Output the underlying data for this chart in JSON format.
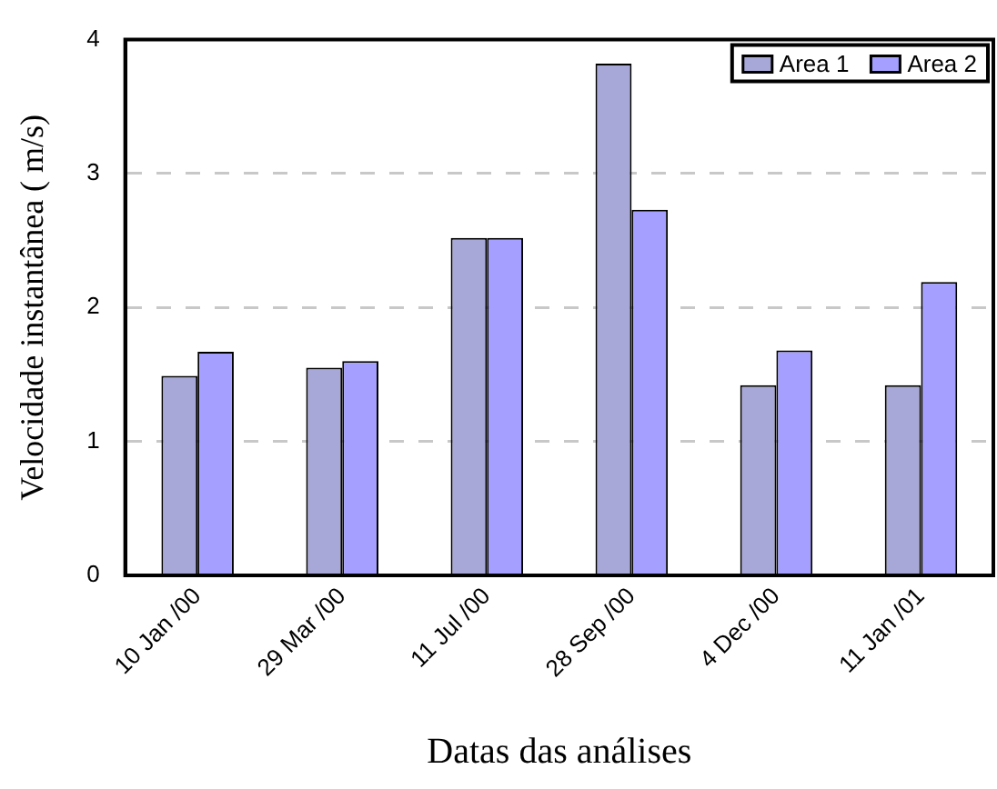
{
  "chart_data": {
    "type": "bar",
    "xlabel": "Datas das análises",
    "ylabel": "Velocidade instantânea ( m/s)",
    "categories": [
      "10 Jan /00",
      "29 Mar /00",
      "11 Jul /00",
      "28 Sep /00",
      "4 Dec /00",
      "11 Jan /01"
    ],
    "series": [
      {
        "name": "Area 1",
        "color": "#a8a8d8",
        "values": [
          1.49,
          1.55,
          2.52,
          3.82,
          1.42,
          1.42
        ]
      },
      {
        "name": "Area 2",
        "color": "#a5a0ff",
        "values": [
          1.67,
          1.6,
          2.52,
          2.73,
          1.68,
          2.19
        ]
      }
    ],
    "ylim": [
      0,
      4
    ],
    "yticks": [
      0,
      1,
      2,
      3,
      4
    ],
    "grid": "y",
    "legend": "top right"
  }
}
